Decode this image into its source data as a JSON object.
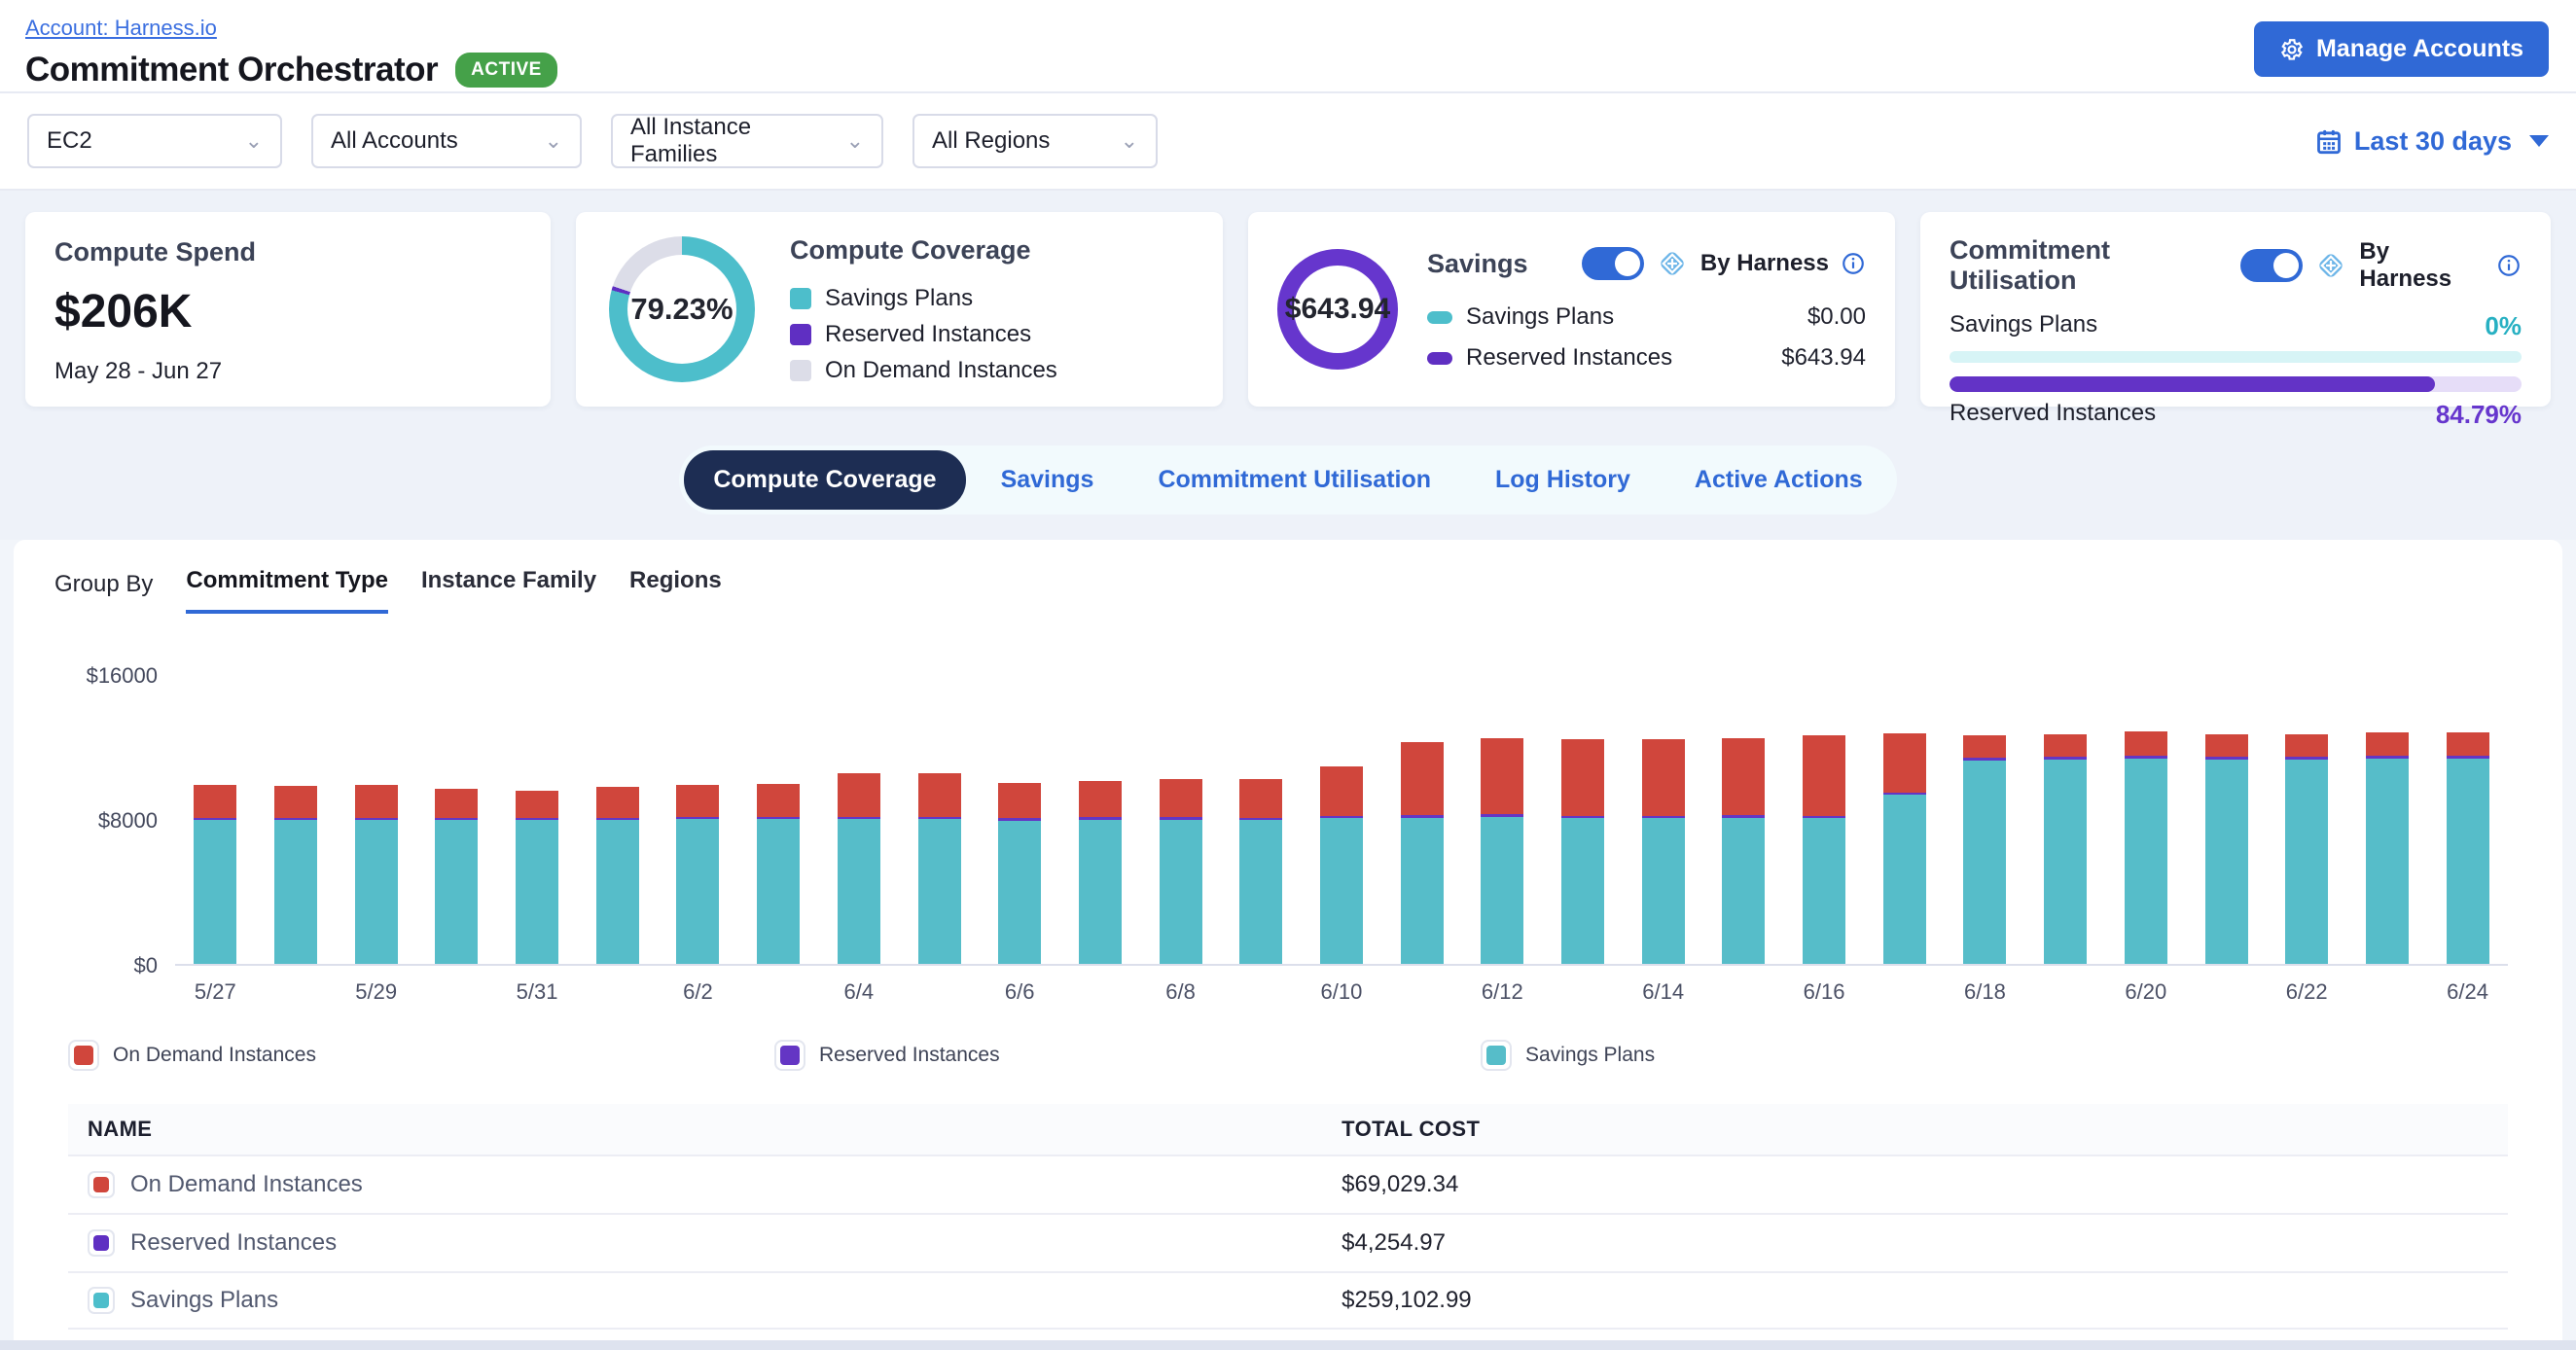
{
  "header": {
    "account_link": "Account: Harness.io",
    "title": "Commitment Orchestrator",
    "status_badge": "ACTIVE",
    "manage_accounts_label": "Manage Accounts"
  },
  "filters": {
    "dropdowns": [
      {
        "name": "service",
        "value": "EC2"
      },
      {
        "name": "accounts",
        "value": "All Accounts"
      },
      {
        "name": "instance-families",
        "value": "All Instance Families"
      },
      {
        "name": "regions",
        "value": "All Regions"
      }
    ],
    "date_range": "Last 30 days"
  },
  "cards": {
    "compute_spend": {
      "title": "Compute Spend",
      "value": "$206K",
      "date_range": "May 28 - Jun 27"
    },
    "compute_coverage": {
      "title": "Compute Coverage",
      "percent": "79.23%",
      "percent_value": 79.23,
      "reserved_sliver_value": 0.9,
      "legend": [
        {
          "label": "Savings Plans",
          "color": "#4dbecb"
        },
        {
          "label": "Reserved Instances",
          "color": "#5f2fc2"
        },
        {
          "label": "On Demand Instances",
          "color": "#dcdde8"
        }
      ]
    },
    "savings": {
      "title": "Savings",
      "total": "$643.94",
      "by_harness": "By Harness",
      "toggle_on": true,
      "rows": [
        {
          "label": "Savings Plans",
          "color": "#4dbecb",
          "value": "$0.00"
        },
        {
          "label": "Reserved Instances",
          "color": "#5f2fc2",
          "value": "$643.94"
        }
      ]
    },
    "utilisation": {
      "title": "Commitment Utilisation",
      "by_harness": "By Harness",
      "toggle_on": true,
      "savings_plans_label": "Savings Plans",
      "savings_plans_pct": "0%",
      "savings_plans_pct_value": 0,
      "reserved_label": "Reserved Instances",
      "reserved_pct": "84.79%",
      "reserved_pct_value": 84.79
    }
  },
  "tabs": [
    {
      "label": "Compute Coverage",
      "active": true
    },
    {
      "label": "Savings",
      "active": false
    },
    {
      "label": "Commitment Utilisation",
      "active": false
    },
    {
      "label": "Log History",
      "active": false
    },
    {
      "label": "Active Actions",
      "active": false
    }
  ],
  "group_by": {
    "label": "Group By",
    "options": [
      "Commitment Type",
      "Instance Family",
      "Regions"
    ],
    "active": "Commitment Type"
  },
  "chart_data": {
    "type": "bar",
    "stacked": true,
    "title": "Compute coverage by commitment type (daily cost)",
    "categories": [
      "5/27",
      "5/28",
      "5/29",
      "5/30",
      "5/31",
      "6/1",
      "6/2",
      "6/3",
      "6/4",
      "6/5",
      "6/6",
      "6/7",
      "6/8",
      "6/9",
      "6/10",
      "6/11",
      "6/12",
      "6/13",
      "6/14",
      "6/15",
      "6/16",
      "6/17",
      "6/18",
      "6/19",
      "6/20",
      "6/21",
      "6/22",
      "6/23",
      "6/24"
    ],
    "x_tick_every": 2,
    "series": [
      {
        "name": "Savings Plans",
        "color": "#56bdc9",
        "values": [
          7950,
          7950,
          7950,
          7950,
          7930,
          7950,
          8000,
          8000,
          8000,
          8000,
          7900,
          7950,
          7950,
          7950,
          8050,
          8050,
          8100,
          8050,
          8050,
          8050,
          8050,
          9330,
          11240,
          11280,
          11330,
          11280,
          11280,
          11330,
          11320
        ]
      },
      {
        "name": "Reserved Instances",
        "color": "#6436c4",
        "values": [
          120,
          120,
          120,
          120,
          100,
          120,
          120,
          120,
          120,
          120,
          150,
          150,
          150,
          120,
          120,
          150,
          150,
          120,
          120,
          150,
          120,
          120,
          160,
          160,
          160,
          160,
          160,
          160,
          160
        ]
      },
      {
        "name": "On Demand Instances",
        "color": "#d0463c",
        "values": [
          1830,
          1780,
          1800,
          1610,
          1550,
          1690,
          1750,
          1830,
          2380,
          2380,
          1950,
          2000,
          2100,
          2130,
          2730,
          4060,
          4220,
          4210,
          4210,
          4250,
          4460,
          3290,
          1230,
          1260,
          1360,
          1260,
          1260,
          1310,
          1300
        ]
      }
    ],
    "xlabel": "",
    "ylabel": "",
    "ylim": [
      0,
      16000
    ],
    "yticks": [
      {
        "label": "$0",
        "value": 0
      },
      {
        "label": "$8000",
        "value": 8000
      },
      {
        "label": "$16000",
        "value": 16000
      }
    ],
    "grid": false,
    "legend_position": "bottom"
  },
  "chart_legend": [
    {
      "label": "On Demand Instances",
      "color": "#d0463c"
    },
    {
      "label": "Reserved Instances",
      "color": "#6436c4"
    },
    {
      "label": "Savings Plans",
      "color": "#56bdc9"
    }
  ],
  "table": {
    "headers": [
      "NAME",
      "TOTAL COST"
    ],
    "rows": [
      {
        "label": "On Demand Instances",
        "color": "#d0463c",
        "value": "$69,029.34"
      },
      {
        "label": "Reserved Instances",
        "color": "#5f2fc2",
        "value": "$4,254.97"
      },
      {
        "label": "Savings Plans",
        "color": "#4dbecb",
        "value": "$259,102.99"
      }
    ]
  },
  "colors": {
    "accent_blue": "#3069d6",
    "active_tab_navy": "#1d2d53",
    "badge_green": "#45a149",
    "teal": "#56bdc9",
    "purple": "#6436c4",
    "red": "#d0463c",
    "coverage_gray": "#dcdde8"
  }
}
